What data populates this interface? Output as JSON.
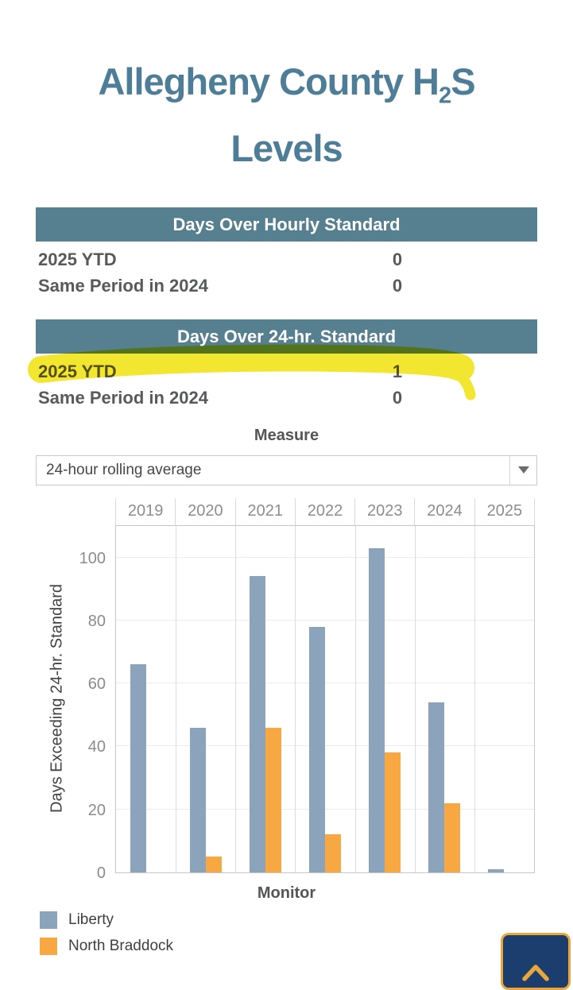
{
  "page": {
    "title_pre": "Allegheny County H",
    "title_sub": "2",
    "title_post": "S",
    "title_line2": "Levels"
  },
  "tables": [
    {
      "header": "Days Over Hourly Standard",
      "rows": [
        {
          "label": "2025 YTD",
          "value": "0"
        },
        {
          "label": "Same Period in 2024",
          "value": "0"
        }
      ]
    },
    {
      "header": "Days Over 24-hr. Standard",
      "rows": [
        {
          "label": "2025 YTD",
          "value": "1",
          "highlighted": true
        },
        {
          "label": "Same Period in 2024",
          "value": "0"
        }
      ]
    }
  ],
  "measure": {
    "label": "Measure",
    "selected": "24-hour rolling average"
  },
  "chart_data": {
    "type": "bar",
    "categories": [
      "2019",
      "2020",
      "2021",
      "2022",
      "2023",
      "2024",
      "2025"
    ],
    "series": [
      {
        "name": "Liberty",
        "color": "#8ca3bc",
        "values": [
          66,
          46,
          94,
          78,
          103,
          54,
          1
        ]
      },
      {
        "name": "North Braddock",
        "color": "#f8a842",
        "values": [
          0,
          5,
          46,
          12,
          38,
          22,
          0
        ]
      }
    ],
    "xlabel": "Monitor",
    "ylabel": "Days Exceeding 24-hr. Standard",
    "ylim": [
      0,
      110
    ],
    "yticks": [
      0,
      20,
      40,
      60,
      80,
      100
    ],
    "grid": true,
    "legend_position": "bottom-left"
  },
  "legend": {
    "items": [
      {
        "label": "Liberty",
        "color": "#8ca3bc"
      },
      {
        "label": "North Braddock",
        "color": "#f8a842"
      }
    ]
  },
  "scroll_button": {
    "icon": "chevron-up-icon"
  },
  "colors": {
    "accent_teal": "#4e7e97",
    "header_bg": "#567f8f",
    "highlight_yellow": "#f2e41e",
    "button_navy": "#1c3e6e",
    "button_gold": "#e9a63b"
  }
}
